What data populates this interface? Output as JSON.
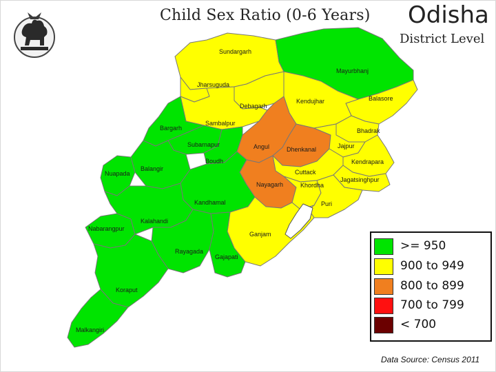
{
  "header": {
    "title": "Child Sex Ratio (0-6 Years)",
    "state": "Odisha",
    "level": "District Level"
  },
  "emblem": {
    "icon": "odisha-state-emblem-icon"
  },
  "legend": [
    {
      "label": ">= 950",
      "color": "#00e400"
    },
    {
      "label": "900 to 949",
      "color": "#ffff00"
    },
    {
      "label": "800 to 899",
      "color": "#f07f1f"
    },
    {
      "label": "700 to 799",
      "color": "#ff1010"
    },
    {
      "label": "< 700",
      "color": "#6b0000"
    }
  ],
  "source": "Data Source: Census 2011",
  "districts": {
    "sundargarh": "Sundargarh",
    "mayurbhanj": "Mayurbhanj",
    "jharsuguda": "Jharsuguda",
    "balasore": "Balasore",
    "kendujhar": "Kendujhar",
    "debagarh": "Debagarh",
    "sambalpur": "Sambalpur",
    "bargarh": "Bargarh",
    "bhadrak": "Bhadrak",
    "subarnapur": "Subarnapur",
    "angul": "Angul",
    "dhenkanal": "Dhenkanal",
    "jajpur": "Jajpur",
    "boudh": "Boudh",
    "kendrapara": "Kendrapara",
    "nuapada": "Nuapada",
    "balangir": "Balangir",
    "cuttack": "Cuttack",
    "jagatsinghpur": "Jagatsinghpur",
    "nayagarh": "Nayagarh",
    "khordha": "Khordha",
    "kandhamal": "Kandhamal",
    "puri": "Puri",
    "nabarangpur": "Nabarangpur",
    "kalahandi": "Kalahandi",
    "ganjam": "Ganjam",
    "rayagada": "Rayagada",
    "gajapati": "Gajapati",
    "koraput": "Koraput",
    "malkangiri": "Malkangiri"
  }
}
